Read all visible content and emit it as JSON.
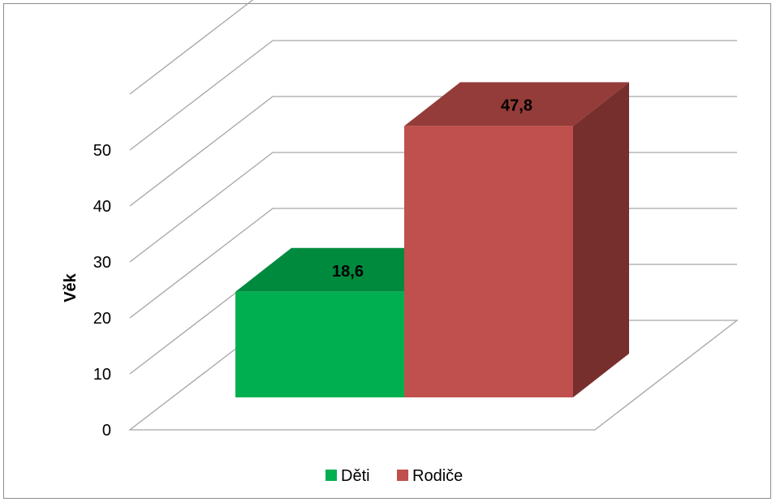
{
  "chart_data": {
    "type": "bar",
    "categories": [
      "Děti",
      "Rodiče"
    ],
    "values": [
      18.6,
      47.8
    ],
    "data_labels": [
      "18,6",
      "47,8"
    ],
    "ylabel": "Věk",
    "ylim": [
      0,
      50
    ],
    "yticks": [
      "0",
      "10",
      "20",
      "30",
      "40",
      "50"
    ],
    "grid": true,
    "three_d": true,
    "legend": {
      "position": "bottom",
      "entries": [
        "Děti",
        "Rodiče"
      ]
    },
    "colors": {
      "series_front": [
        "#00b050",
        "#c0504d"
      ],
      "series_top": [
        "#008a3e",
        "#943c39"
      ],
      "series_side": [
        "#007a35",
        "#772f2e"
      ],
      "grid": "#a6a6a6",
      "frame": "#8c8c8c"
    }
  }
}
